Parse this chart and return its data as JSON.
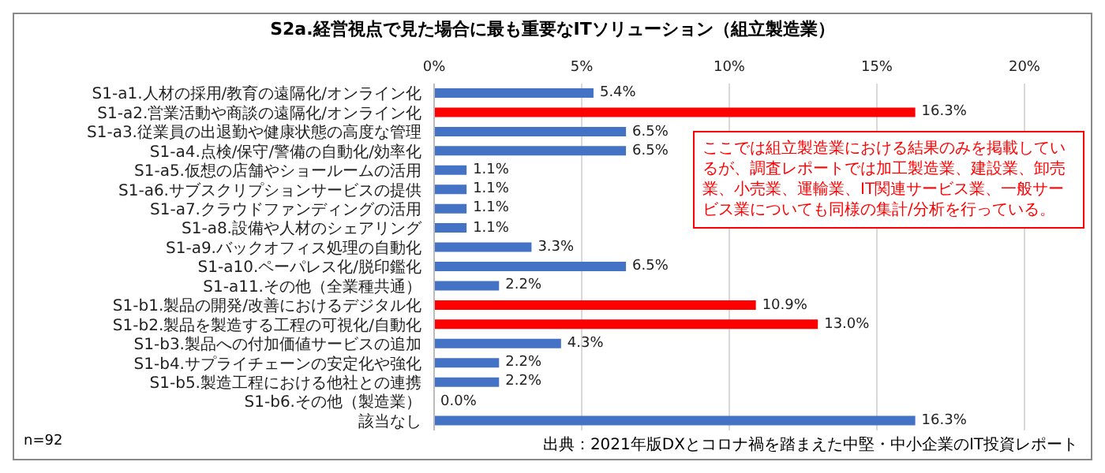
{
  "chart_data": {
    "type": "bar",
    "orientation": "horizontal",
    "title": "S2a.経営視点で見た場合に最も重要なITソリューション（組立製造業）",
    "categories": [
      "S1-a1.人材の採用/教育の遠隔化/オンライン化",
      "S1-a2.営業活動や商談の遠隔化/オンライン化",
      "S1-a3.従業員の出退勤や健康状態の高度な管理",
      "S1-a4.点検/保守/警備の自動化/効率化",
      "S1-a5.仮想の店舗やショールームの活用",
      "S1-a6.サブスクリプションサービスの提供",
      "S1-a7.クラウドファンディングの活用",
      "S1-a8.設備や人材のシェアリング",
      "S1-a9.バックオフィス処理の自動化",
      "S1-a10.ペーパレス化/脱印鑑化",
      "S1-a11.その他（全業種共通）",
      "S1-b1.製品の開発/改善におけるデジタル化",
      "S1-b2.製品を製造する工程の可視化/自動化",
      "S1-b3.製品への付加価値サービスの追加",
      "S1-b4.サプライチェーンの安定化や強化",
      "S1-b5.製造工程における他社との連携",
      "S1-b6.その他（製造業）",
      "該当なし"
    ],
    "values": [
      5.4,
      16.3,
      6.5,
      6.5,
      1.1,
      1.1,
      1.1,
      1.1,
      3.3,
      6.5,
      2.2,
      10.9,
      13.0,
      4.3,
      2.2,
      2.2,
      0.0,
      16.3
    ],
    "colors": [
      "#4472c4",
      "#ff0000",
      "#4472c4",
      "#4472c4",
      "#4472c4",
      "#4472c4",
      "#4472c4",
      "#4472c4",
      "#4472c4",
      "#4472c4",
      "#4472c4",
      "#ff0000",
      "#ff0000",
      "#4472c4",
      "#4472c4",
      "#4472c4",
      "#4472c4",
      "#4472c4"
    ],
    "value_labels": [
      "5.4%",
      "16.3%",
      "6.5%",
      "6.5%",
      "1.1%",
      "1.1%",
      "1.1%",
      "1.1%",
      "3.3%",
      "6.5%",
      "2.2%",
      "10.9%",
      "13.0%",
      "4.3%",
      "2.2%",
      "2.2%",
      "0.0%",
      "16.3%"
    ],
    "xlim": [
      0,
      20
    ],
    "xticks": [
      {
        "value": 0,
        "label": "0%"
      },
      {
        "value": 5,
        "label": "5%"
      },
      {
        "value": 10,
        "label": "10%"
      },
      {
        "value": 15,
        "label": "15%"
      },
      {
        "value": 20,
        "label": "20%"
      }
    ],
    "grid": "x",
    "legend": false,
    "annotations": [
      "ここでは組立製造業における結果のみを掲載しているが、調査レポートでは加工製造業、建設業、卸売業、小売業、運輸業、IT関連サービス業、一般サービス業についても同様の集計/分析を行っている。",
      "n=92",
      "出典：2021年版DXとコロナ禍を踏まえた中堅・中小企業のIT投資レポート"
    ]
  }
}
